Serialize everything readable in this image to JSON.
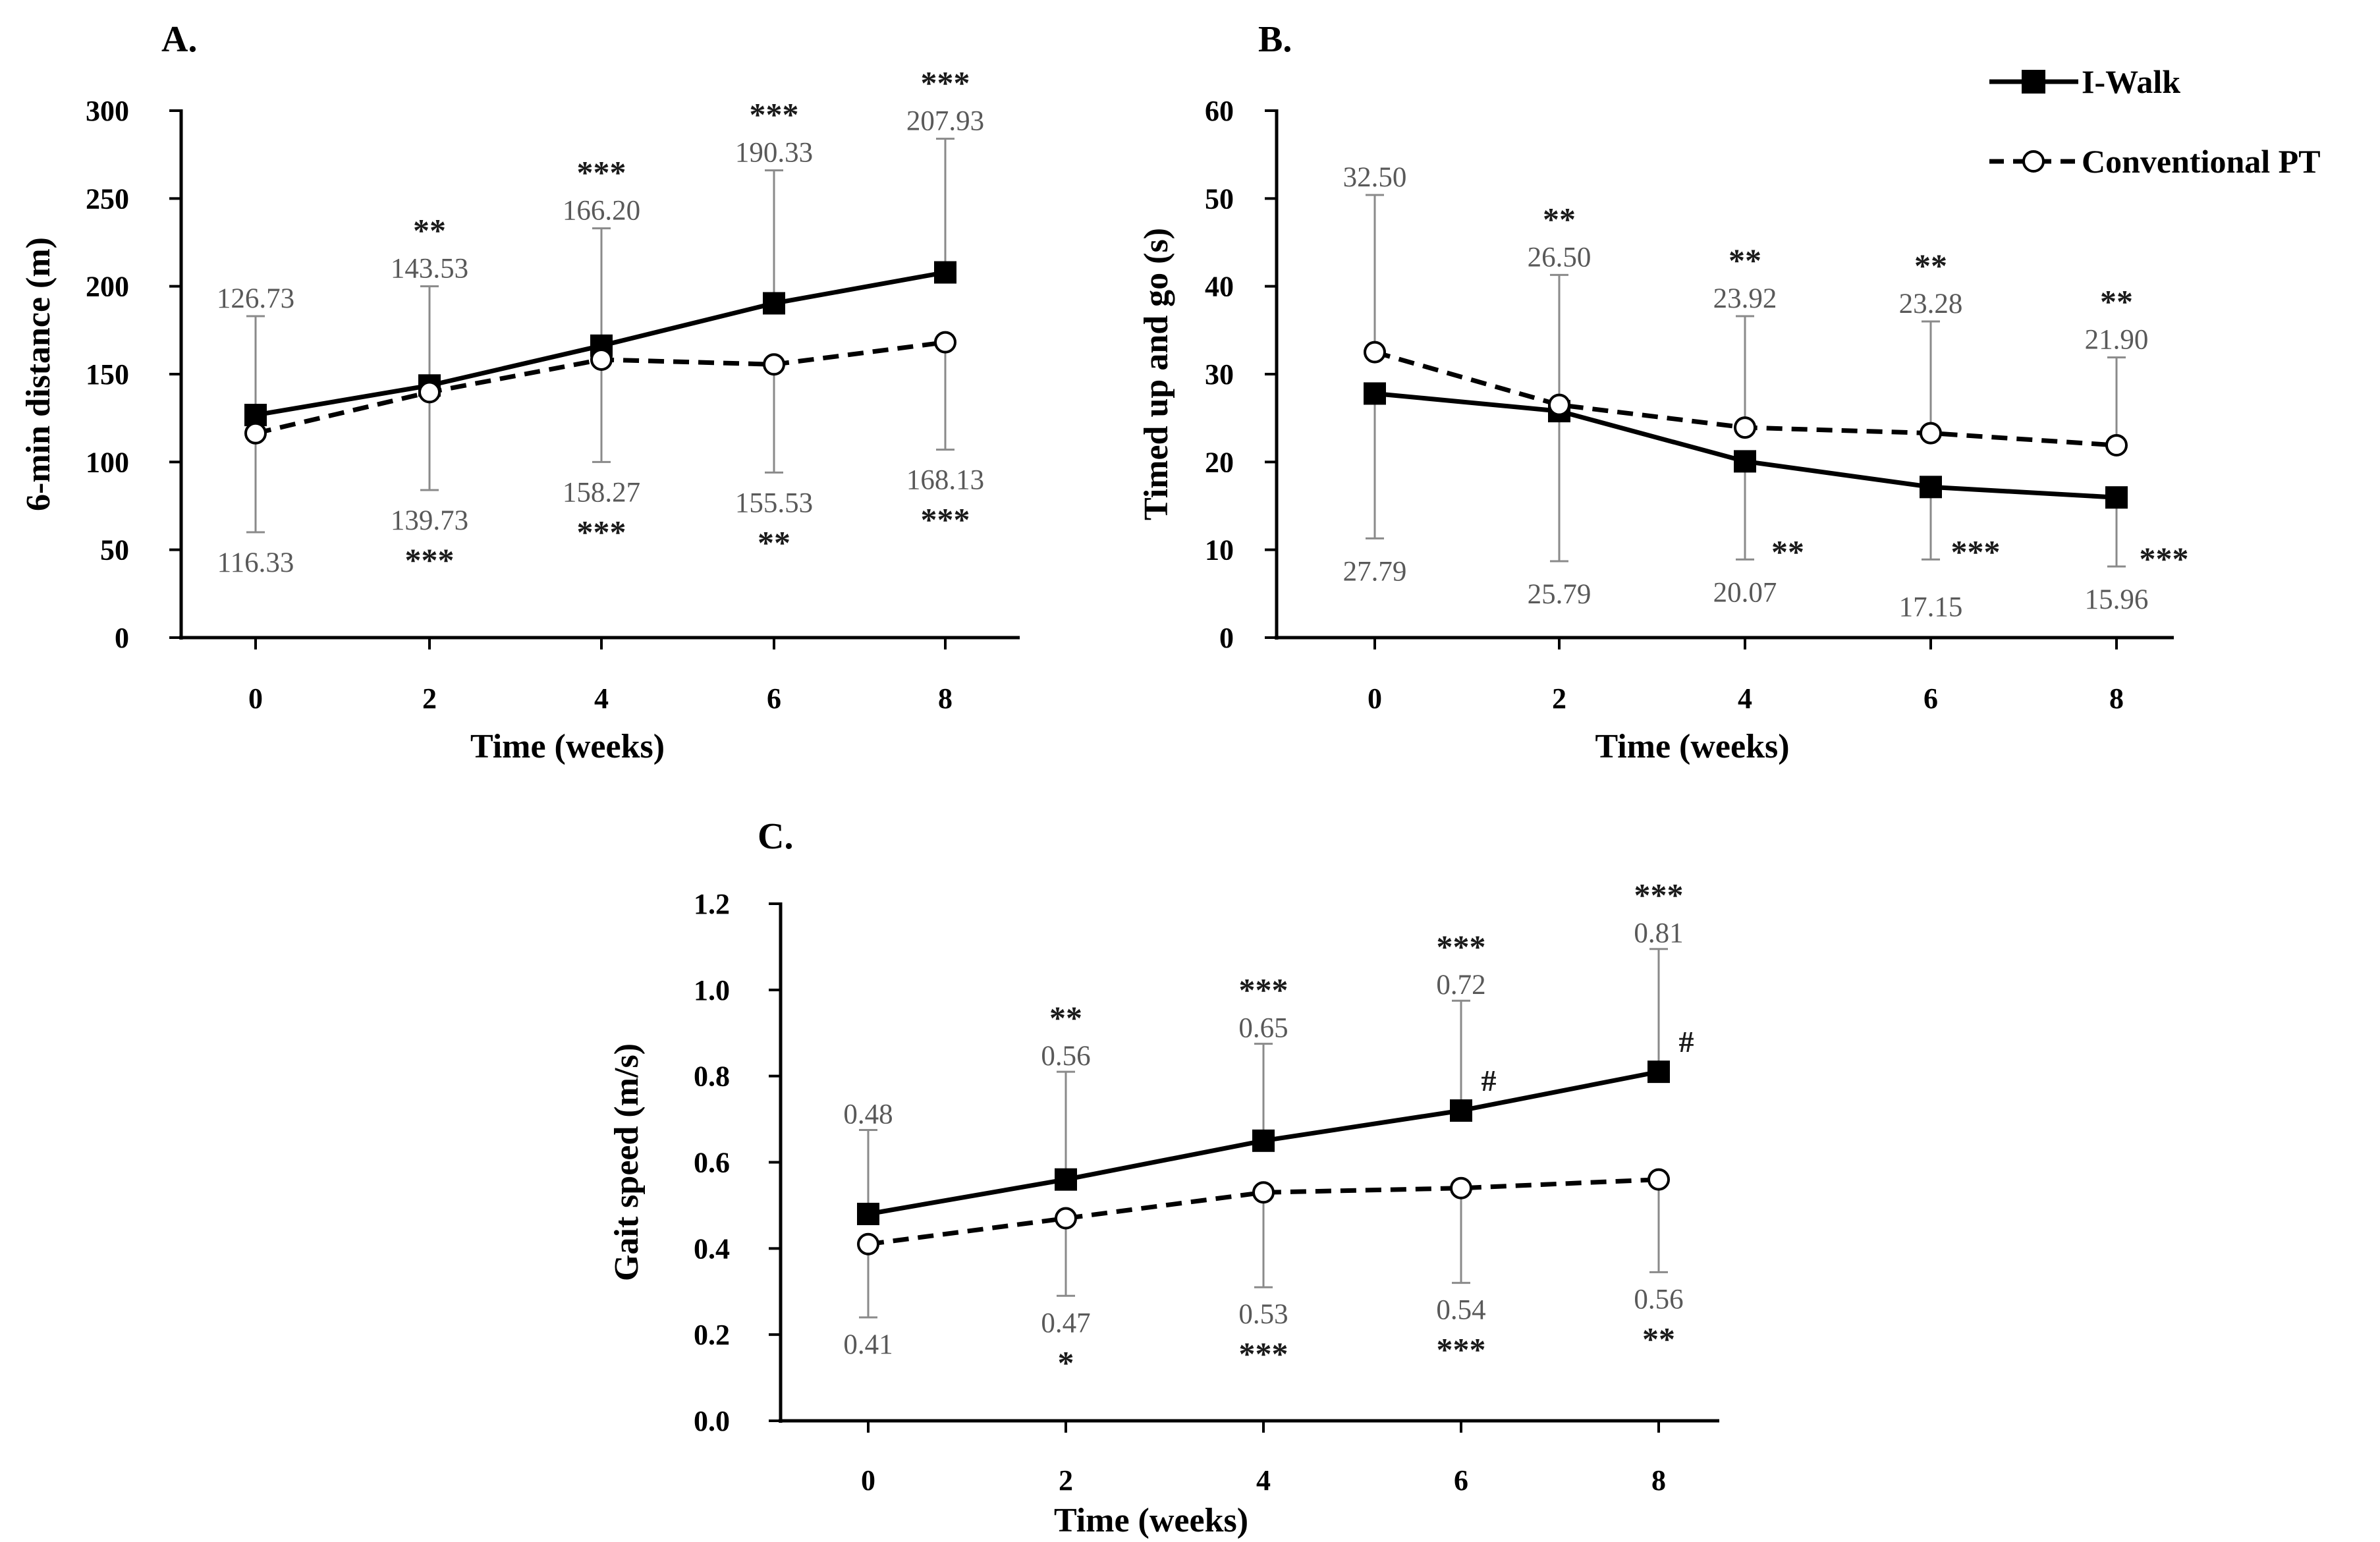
{
  "legend": {
    "series": [
      {
        "name": "I-Walk",
        "style": "solid",
        "marker": "square"
      },
      {
        "name": "Conventional PT",
        "style": "dashed",
        "marker": "circle"
      }
    ]
  },
  "chart_data": [
    {
      "panel": "A.",
      "type": "line",
      "title": "",
      "xlabel": "Time (weeks)",
      "ylabel": "6-min distance (m)",
      "categories": [
        "0",
        "2",
        "4",
        "6",
        "8"
      ],
      "x": [
        0,
        2,
        4,
        6,
        8
      ],
      "ylim": [
        0,
        300
      ],
      "yticks": [
        "0",
        "50",
        "100",
        "150",
        "200",
        "250",
        "300"
      ],
      "series": [
        {
          "name": "I-Walk",
          "values": [
            126.73,
            143.53,
            166.2,
            190.33,
            207.93
          ],
          "labels": [
            "126.73",
            "143.53",
            "166.20",
            "190.33",
            "207.93"
          ],
          "error_upper": [
            183,
            200,
            233,
            266,
            284
          ],
          "significance": [
            "",
            "**",
            "***",
            "***",
            "***"
          ]
        },
        {
          "name": "Conventional PT",
          "values": [
            116.33,
            139.73,
            158.27,
            155.53,
            168.13
          ],
          "labels": [
            "116.33",
            "139.73",
            "158.27",
            "155.53",
            "168.13"
          ],
          "error_lower": [
            60,
            84,
            100,
            94,
            107
          ],
          "significance": [
            "",
            "***",
            "***",
            "**",
            "***"
          ]
        }
      ],
      "between_group": [
        "",
        "",
        "",
        "",
        ""
      ]
    },
    {
      "panel": "B.",
      "type": "line",
      "title": "",
      "xlabel": "Time (weeks)",
      "ylabel": "Timed up and go (s)",
      "categories": [
        "0",
        "2",
        "4",
        "6",
        "8"
      ],
      "x": [
        0,
        2,
        4,
        6,
        8
      ],
      "ylim": [
        0,
        60
      ],
      "yticks": [
        "0",
        "10",
        "20",
        "30",
        "40",
        "50",
        "60"
      ],
      "series": [
        {
          "name": "I-Walk",
          "values": [
            27.79,
            25.79,
            20.07,
            17.15,
            15.96
          ],
          "labels": [
            "27.79",
            "25.79",
            "20.07",
            "17.15",
            "15.96"
          ],
          "error_lower": [
            11.3,
            8.7,
            8.9,
            8.9,
            8.1
          ],
          "significance": [
            "",
            "",
            "**",
            "***",
            "***"
          ]
        },
        {
          "name": "Conventional PT",
          "values": [
            32.5,
            26.5,
            23.92,
            23.28,
            21.9
          ],
          "labels": [
            "32.50",
            "26.50",
            "23.92",
            "23.28",
            "21.90"
          ],
          "error_upper": [
            50.4,
            41.3,
            36.6,
            36.0,
            31.9
          ],
          "significance": [
            "",
            "**",
            "**",
            "**",
            "**"
          ]
        }
      ],
      "between_group": [
        "",
        "",
        "",
        "",
        ""
      ]
    },
    {
      "panel": "C.",
      "type": "line",
      "title": "",
      "xlabel": "Time (weeks)",
      "ylabel": "Gait speed (m/s)",
      "categories": [
        "0",
        "2",
        "4",
        "6",
        "8"
      ],
      "x": [
        0,
        2,
        4,
        6,
        8
      ],
      "ylim": [
        0,
        1.2
      ],
      "yticks": [
        "0.0",
        "0.2",
        "0.4",
        "0.6",
        "0.8",
        "1.0",
        "1.2"
      ],
      "series": [
        {
          "name": "I-Walk",
          "values": [
            0.48,
            0.56,
            0.65,
            0.72,
            0.81
          ],
          "labels": [
            "0.48",
            "0.56",
            "0.65",
            "0.72",
            "0.81"
          ],
          "error_upper": [
            0.675,
            0.81,
            0.875,
            0.975,
            1.095
          ],
          "significance": [
            "",
            "**",
            "***",
            "***",
            "***"
          ]
        },
        {
          "name": "Conventional PT",
          "values": [
            0.41,
            0.47,
            0.53,
            0.54,
            0.56
          ],
          "labels": [
            "0.41",
            "0.47",
            "0.53",
            "0.54",
            "0.56"
          ],
          "error_lower": [
            0.24,
            0.29,
            0.31,
            0.32,
            0.345
          ],
          "significance": [
            "",
            "*",
            "***",
            "***",
            "**"
          ]
        }
      ],
      "between_group": [
        "",
        "",
        "",
        "#",
        "#"
      ]
    }
  ]
}
